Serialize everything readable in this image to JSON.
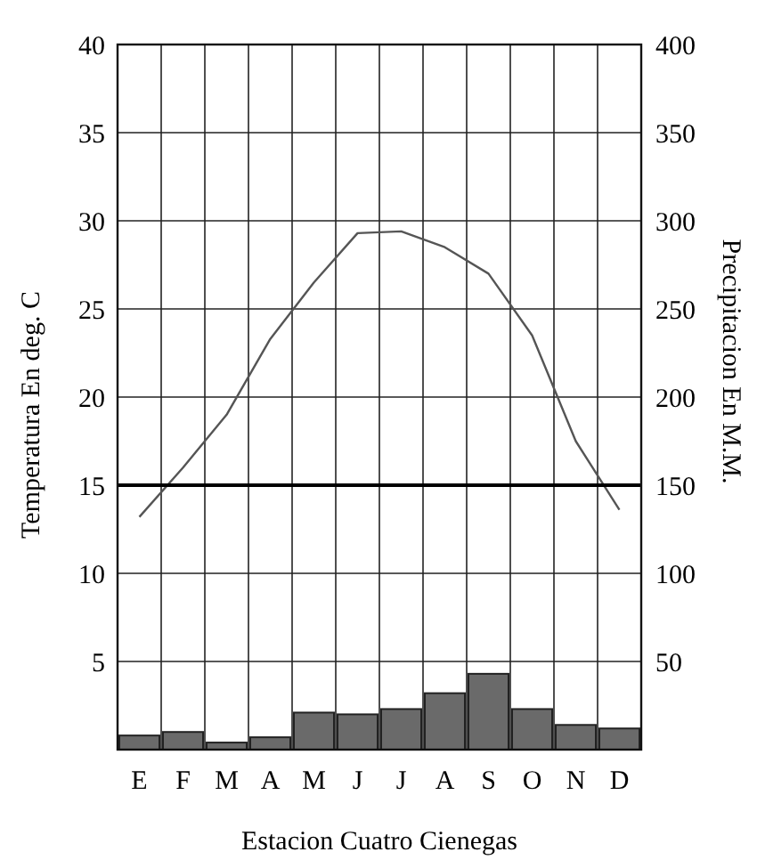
{
  "chart_data": {
    "type": "bar",
    "xlabel": "Estacion Cuatro Cienegas",
    "ylabel": "Temperatura En deg. C",
    "y2label": "Precipitacion En M.M.",
    "categories": [
      "E",
      "F",
      "M",
      "A",
      "M",
      "J",
      "J",
      "A",
      "S",
      "O",
      "N",
      "D"
    ],
    "series": [
      {
        "axis": "y2",
        "color": "#6a6a6a",
        "values": [
          8,
          10,
          4,
          7,
          21,
          20,
          23,
          32,
          43,
          23,
          14,
          12
        ]
      },
      {
        "type": "line",
        "axis": "y",
        "color": "#555555",
        "values": [
          13.2,
          16,
          19,
          23.3,
          26.5,
          29.3,
          29.4,
          28.5,
          27,
          23.5,
          17.5,
          13.6
        ]
      }
    ],
    "ylim": [
      0,
      40
    ],
    "yticks": [
      5,
      10,
      15,
      20,
      25,
      30,
      35,
      40
    ],
    "y2lim": [
      0,
      400
    ],
    "y2ticks": [
      50,
      100,
      150,
      200,
      250,
      300,
      350,
      400
    ],
    "ref_lines": [
      {
        "axis": "y",
        "value": 15,
        "color": "#000000"
      }
    ],
    "grid": true,
    "marker": "none",
    "line_style": "solid"
  }
}
